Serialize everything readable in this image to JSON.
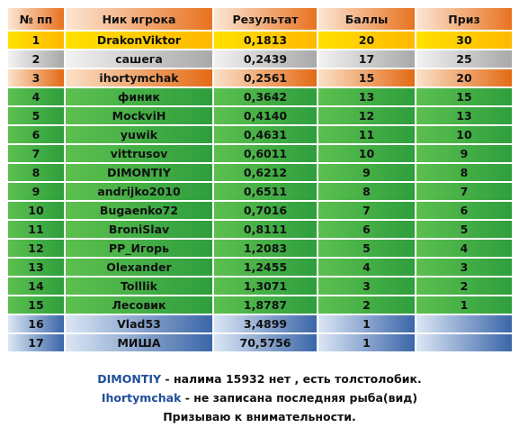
{
  "table": {
    "header": [
      "№ пп",
      "Ник игрока",
      "Результат",
      "Баллы",
      "Приз"
    ],
    "rows": [
      [
        "1",
        "DrakonViktor",
        "0,1813",
        "20",
        "30"
      ],
      [
        "2",
        "сашега",
        "0,2439",
        "17",
        "25"
      ],
      [
        "3",
        "ihortymchak",
        "0,2561",
        "15",
        "20"
      ],
      [
        "4",
        "финик",
        "0,3642",
        "13",
        "15"
      ],
      [
        "5",
        "MockviH",
        "0,4140",
        "12",
        "13"
      ],
      [
        "6",
        "yuwik",
        "0,4631",
        "11",
        "10"
      ],
      [
        "7",
        "vittrusov",
        "0,6011",
        "10",
        "9"
      ],
      [
        "8",
        "DIMONTIY",
        "0,6212",
        "9",
        "8"
      ],
      [
        "9",
        "andrijko2010",
        "0,6511",
        "8",
        "7"
      ],
      [
        "10",
        "Bugaenko72",
        "0,7016",
        "7",
        "6"
      ],
      [
        "11",
        "BroniSlav",
        "0,8111",
        "6",
        "5"
      ],
      [
        "12",
        "PP_Игорь",
        "1,2083",
        "5",
        "4"
      ],
      [
        "13",
        "Olexander",
        "1,2455",
        "4",
        "3"
      ],
      [
        "14",
        "Tolllik",
        "1,3071",
        "3",
        "2"
      ],
      [
        "15",
        "Лесовик",
        "1,8787",
        "2",
        "1"
      ],
      [
        "16",
        "Vlad53",
        "3,4899",
        "1"
      ],
      [
        "17",
        "МИША",
        "70,5756",
        "1"
      ]
    ]
  },
  "notes": [
    {
      "name": "DIMONTIY",
      "text": " - налима 15932 нет , есть толстолобик."
    },
    {
      "name": "Ihortymchak",
      "text": " - не записана последняя рыба(вид)"
    },
    {
      "text": "Призываю к внимательности."
    }
  ]
}
